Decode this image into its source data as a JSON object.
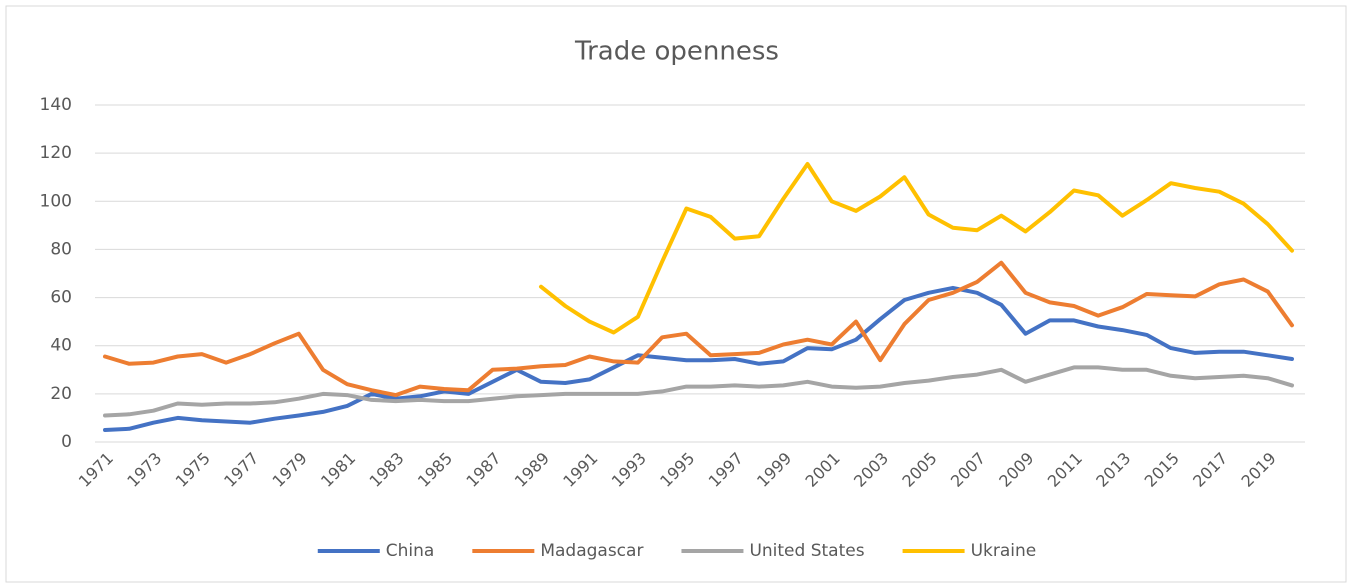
{
  "chart_data": {
    "type": "line",
    "title": "Trade openness",
    "categories": [
      "1971",
      null,
      "1973",
      null,
      "1975",
      null,
      "1977",
      null,
      "1979",
      null,
      "1981",
      null,
      "1983",
      null,
      "1985",
      null,
      "1987",
      null,
      "1989",
      null,
      "1991",
      null,
      "1993",
      null,
      "1995",
      null,
      "1997",
      null,
      "1999",
      null,
      "2001",
      null,
      "2003",
      null,
      "2005",
      null,
      "2007",
      null,
      "2009",
      null,
      "2011",
      null,
      "2013",
      null,
      "2015",
      null,
      "2017",
      null,
      "2019",
      null
    ],
    "series": [
      {
        "name": "China",
        "color": "#4472c4",
        "values": [
          5,
          5.5,
          8,
          10,
          9,
          8.5,
          8,
          9.7,
          11,
          12.5,
          15,
          20,
          18,
          19,
          21,
          20,
          25,
          30,
          25,
          24.5,
          26,
          31,
          36,
          35,
          34,
          34,
          34.5,
          32.5,
          33.5,
          39,
          38.5,
          42.5,
          51,
          59,
          62,
          64,
          62,
          57,
          45,
          50.5,
          50.5,
          48,
          46.5,
          44.5,
          39,
          37,
          37.5,
          37.5,
          36,
          34.5
        ]
      },
      {
        "name": "Madagascar",
        "color": "#ed7d31",
        "values": [
          35.5,
          32.5,
          33,
          35.5,
          36.5,
          33,
          36.5,
          41,
          45,
          30,
          24,
          21.5,
          19.5,
          23,
          22,
          21.5,
          30,
          30.5,
          31.5,
          32,
          35.5,
          33.5,
          33,
          43.5,
          45,
          36,
          36.5,
          37,
          40.5,
          42.5,
          40.5,
          50,
          34,
          49,
          59,
          62,
          66.5,
          74.5,
          62,
          58,
          56.5,
          52.5,
          56,
          61.5,
          61,
          60.5,
          65.5,
          67.5,
          62.5,
          48.5
        ]
      },
      {
        "name": "United States",
        "color": "#a5a5a5",
        "values": [
          11,
          11.5,
          13,
          16,
          15.5,
          16,
          16,
          16.5,
          18,
          20,
          19.5,
          17.5,
          17,
          17.5,
          17,
          17,
          18,
          19,
          19.5,
          20,
          20,
          20,
          20,
          21,
          23,
          23,
          23.5,
          23,
          23.5,
          25,
          23,
          22.5,
          23,
          24.5,
          25.5,
          27,
          28,
          30,
          25,
          28,
          31,
          31,
          30,
          30,
          27.5,
          26.5,
          27,
          27.5,
          26.5,
          23.5
        ]
      },
      {
        "name": "Ukraine",
        "color": "#ffc000",
        "values": [
          null,
          null,
          null,
          null,
          null,
          null,
          null,
          null,
          null,
          null,
          null,
          null,
          null,
          null,
          null,
          null,
          null,
          null,
          64.5,
          56.5,
          50,
          45.5,
          52,
          75,
          97,
          93.5,
          84.5,
          85.5,
          101,
          115.5,
          100,
          96,
          102,
          110,
          94.5,
          89,
          88,
          94,
          87.5,
          95.5,
          104.5,
          102.5,
          94,
          100.5,
          107.5,
          105.5,
          104,
          99,
          90.5,
          79.5
        ]
      }
    ],
    "ylim": [
      0,
      140
    ],
    "yticks": [
      0,
      20,
      40,
      60,
      80,
      100,
      120,
      140
    ],
    "grid": true,
    "legend": "bottom"
  }
}
